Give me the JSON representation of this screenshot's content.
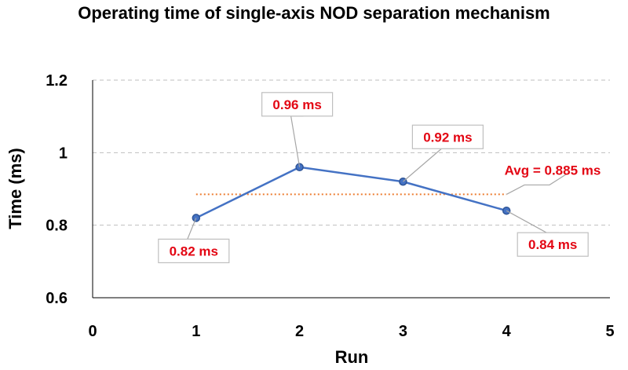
{
  "chart_data": {
    "type": "line",
    "title": "Operating time of single-axis NOD separation mechanism",
    "xlabel": "Run",
    "ylabel": "Time (ms)",
    "xlim": [
      0,
      5
    ],
    "ylim": [
      0.6,
      1.2
    ],
    "xticks": [
      "0",
      "1",
      "2",
      "3",
      "4",
      "5"
    ],
    "yticks": [
      "0.6",
      "0.8",
      "1",
      "1.2"
    ],
    "grid": true,
    "series": [
      {
        "name": "Operating time",
        "x": [
          1,
          2,
          3,
          4
        ],
        "y": [
          0.82,
          0.96,
          0.92,
          0.84
        ],
        "color": "#4472c4"
      }
    ],
    "data_labels": [
      "0.82 ms",
      "0.96 ms",
      "0.92 ms",
      "0.84 ms"
    ],
    "average": {
      "value": 0.885,
      "x_range": [
        1,
        4
      ],
      "label": "Avg = 0.885 ms",
      "color": "#ed7d31"
    },
    "label_color": "#e30613"
  }
}
